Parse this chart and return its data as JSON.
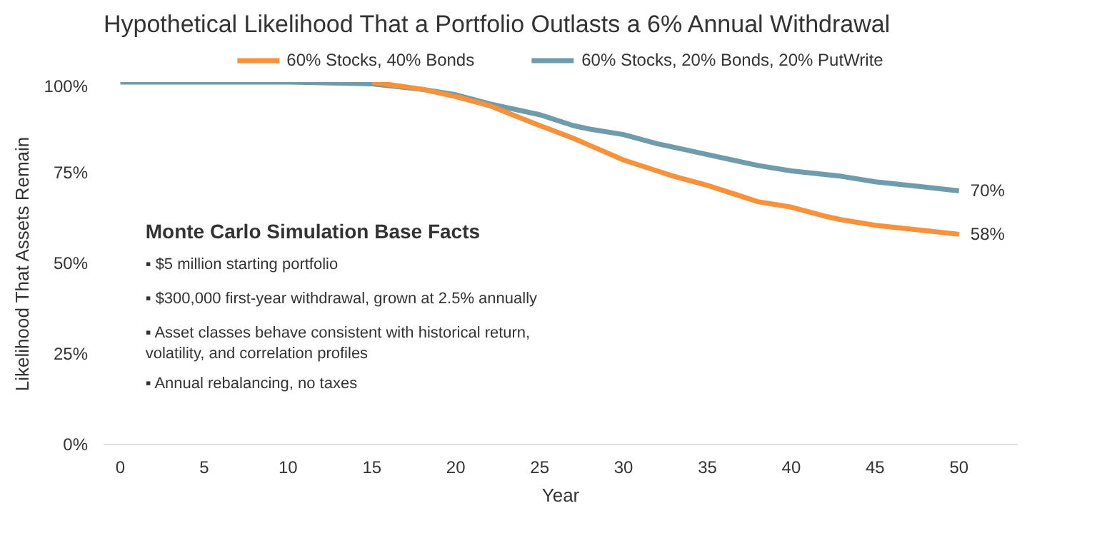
{
  "chart_data": {
    "type": "line",
    "title": "Hypothetical Likelihood That a Portfolio Outlasts a 6% Annual Withdrawal",
    "xlabel": "Year",
    "ylabel": "Likelihood That Assets Remain",
    "xlim": [
      -1,
      53.5
    ],
    "xticks": [
      0,
      5,
      10,
      15,
      20,
      25,
      30,
      35,
      40,
      45,
      50
    ],
    "ylim": [
      0,
      100
    ],
    "yticks": [
      {
        "value": 0,
        "label": "0%"
      },
      {
        "value": 25,
        "label": "25%"
      },
      {
        "value": 50,
        "label": "50%"
      },
      {
        "value": 75,
        "label": "75%"
      },
      {
        "value": 100,
        "label": "100%"
      }
    ],
    "x": [
      0,
      5,
      10,
      15,
      18,
      20,
      22,
      25,
      27,
      28,
      30,
      32,
      33,
      35,
      38,
      40,
      42,
      43,
      45,
      48,
      50
    ],
    "series": [
      {
        "name": "60% Stocks, 40% Bonds",
        "color": "#f7923a",
        "values": [
          null,
          null,
          null,
          100,
          98,
          96,
          93.5,
          88,
          84.5,
          82.5,
          78.5,
          75.5,
          74,
          71.5,
          67,
          65.5,
          63,
          62,
          60.5,
          59,
          58
        ]
      },
      {
        "name": "60% Stocks, 20% Bonds, 20% PutWrite",
        "color": "#6f9cab",
        "values": [
          100,
          100,
          100,
          99.5,
          98,
          96.5,
          94,
          91,
          88,
          87,
          85.5,
          83,
          82,
          80,
          77,
          75.5,
          74.5,
          74,
          72.5,
          71,
          70
        ]
      }
    ],
    "annotations": [
      {
        "text": "70%",
        "x": 50,
        "y": 70
      },
      {
        "text": "58%",
        "x": 50,
        "y": 58
      },
      "Monte Carlo Simulation Base Facts",
      "▪  $5 million starting portfolio",
      "▪  $300,000 first-year withdrawal, grown at 2.5% annually",
      "▪  Asset classes behave consistent with historical return,\n    volatility, and correlation profiles",
      "▪  Annual rebalancing, no taxes"
    ],
    "legend": "top",
    "grid": false,
    "line_style": "solid",
    "marker": "none"
  }
}
